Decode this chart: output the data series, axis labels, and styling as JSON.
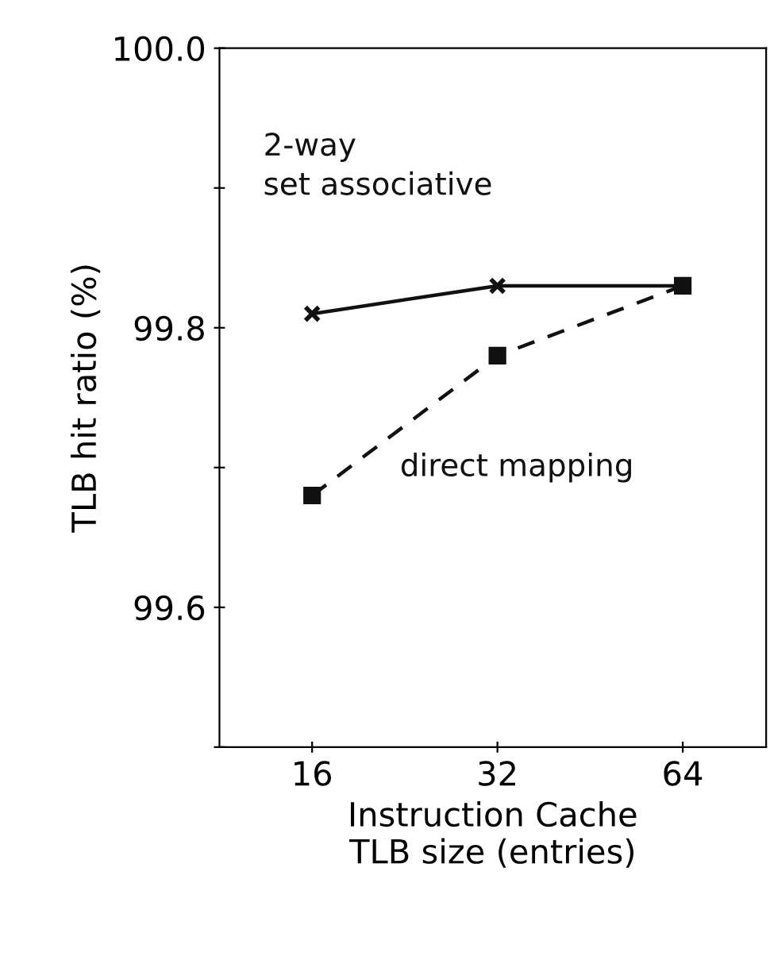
{
  "chart_data": {
    "type": "line",
    "xlabel": "Instruction Cache\nTLB size (entries)",
    "ylabel": "TLB hit ratio (%)",
    "categories": [
      "16",
      "32",
      "64"
    ],
    "series": [
      {
        "name": "2-way\nset associative",
        "color": "#111111",
        "values": [
          99.81,
          99.83,
          99.83
        ],
        "marker": "cross",
        "line_style": "solid"
      },
      {
        "name": "direct mapping",
        "color": "#111111",
        "values": [
          99.68,
          99.78,
          99.83
        ],
        "marker": "square",
        "line_style": "dashed"
      }
    ],
    "ylim": [
      99.5,
      100.0
    ],
    "yticks": [
      {
        "value": 99.5,
        "label": null
      },
      {
        "value": 99.6,
        "label": "99.6"
      },
      {
        "value": 99.7,
        "label": null
      },
      {
        "value": 99.8,
        "label": "99.8"
      },
      {
        "value": 99.9,
        "label": null
      },
      {
        "value": 100.0,
        "label": "100.0"
      }
    ],
    "grid": false,
    "legend": false
  }
}
